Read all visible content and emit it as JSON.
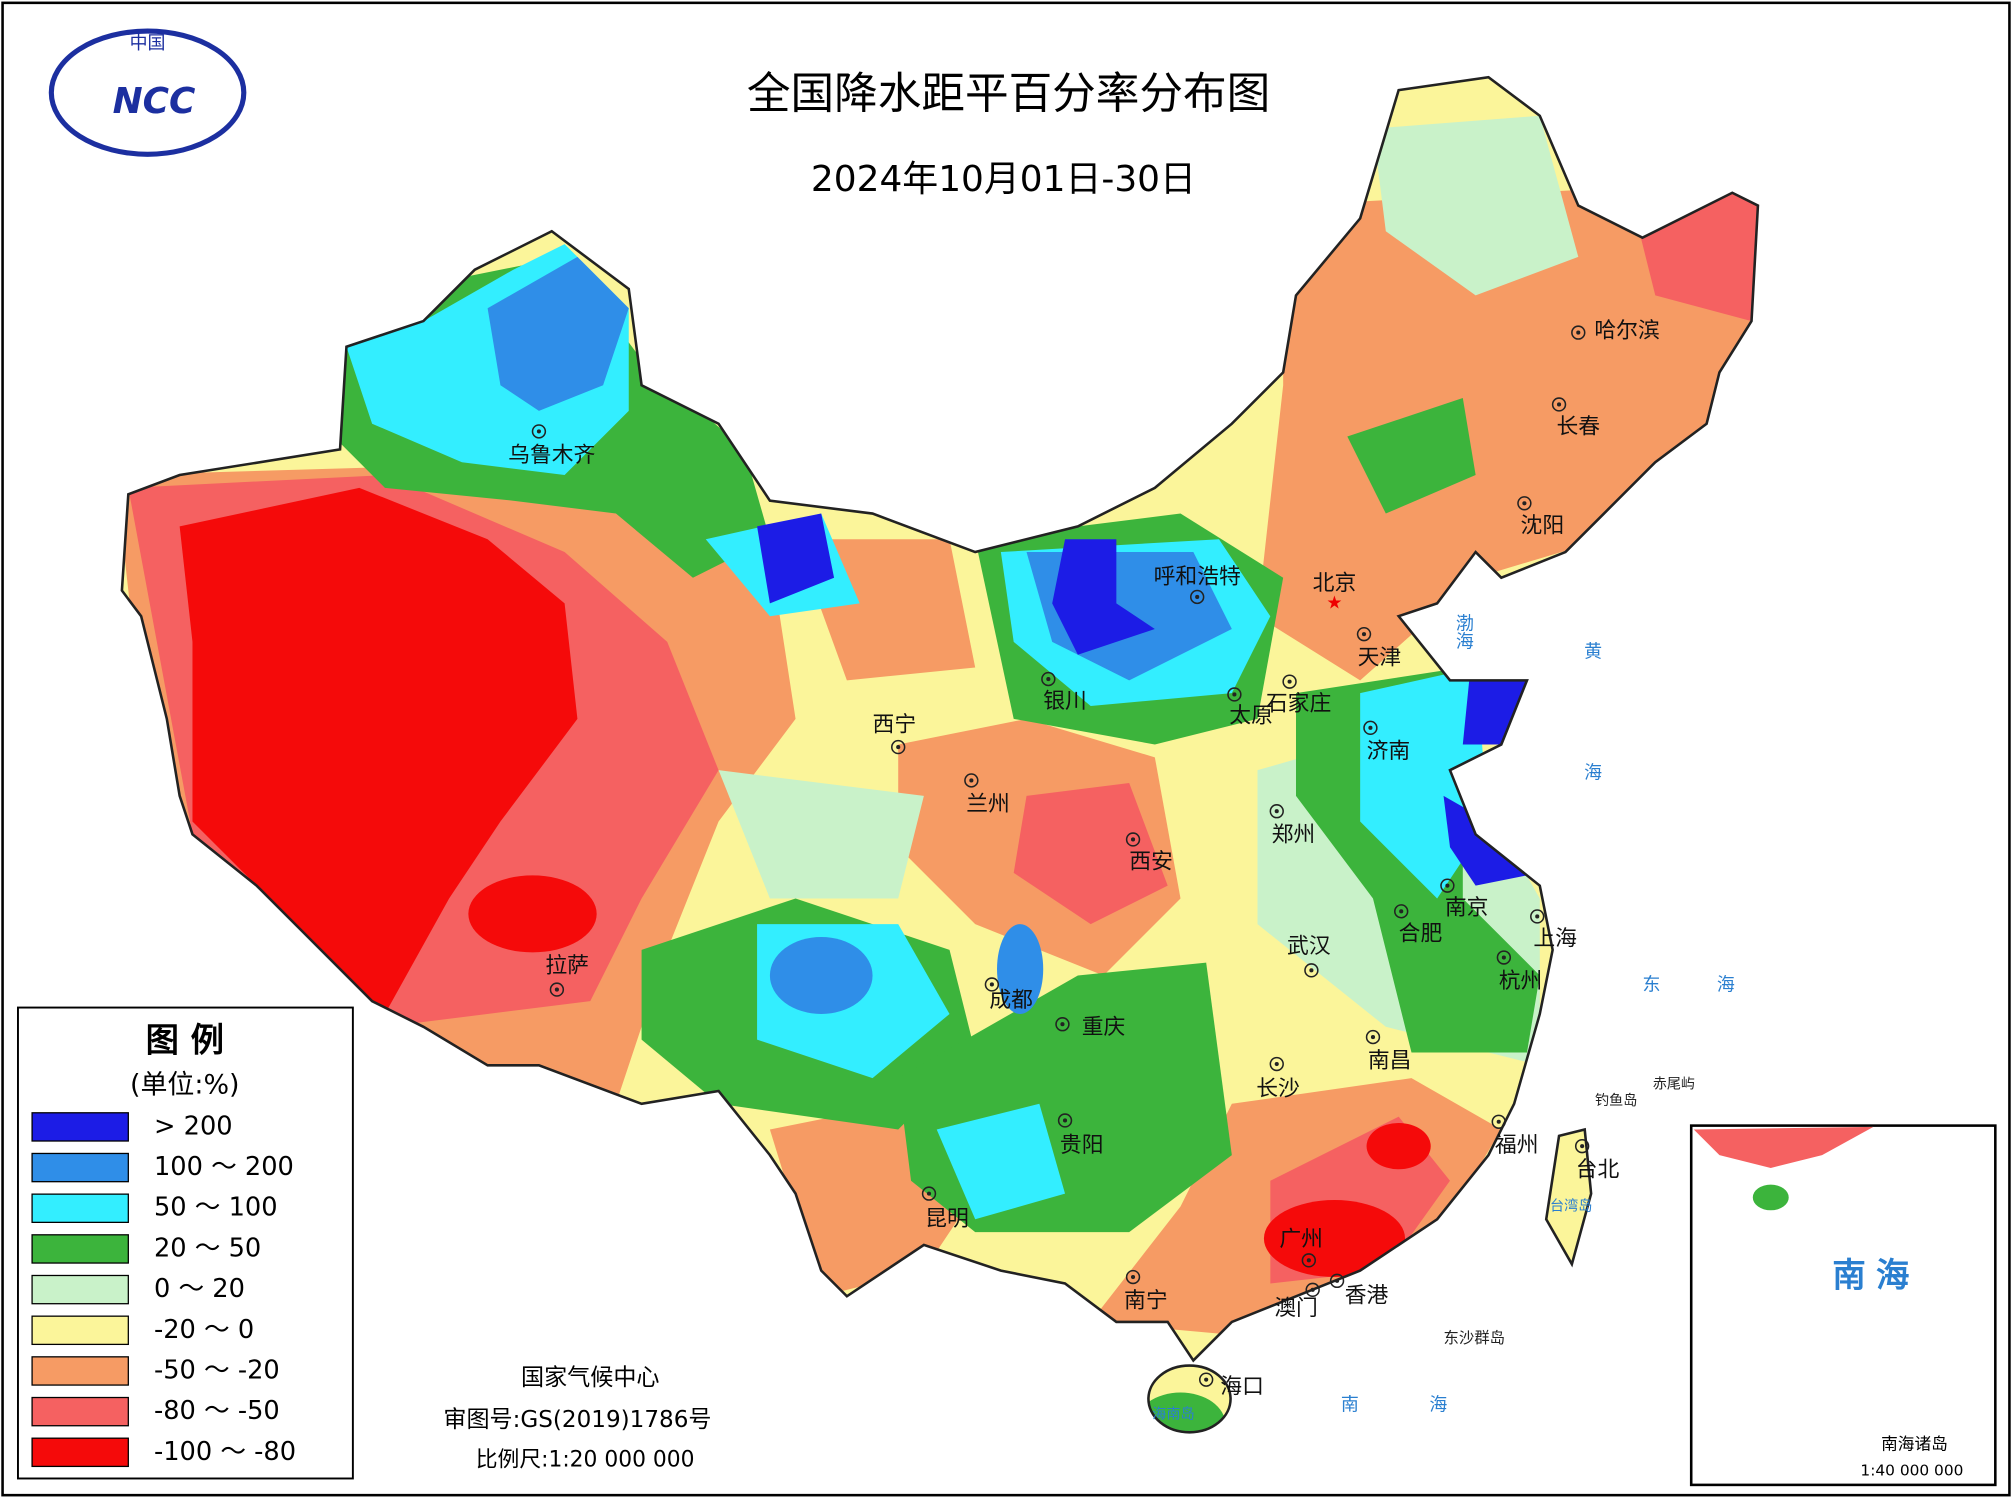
{
  "header": {
    "logo_top": "中国",
    "logo_text": "NCC",
    "title": "全国降水距平百分率分布图",
    "subtitle": "2024年10月01日-30日"
  },
  "legend": {
    "title": "图 例",
    "unit": "(单位:%)",
    "items": [
      {
        "label": "> 200",
        "color": "#1c1ce6"
      },
      {
        "label": "100 ～ 200",
        "color": "#2f8ee8"
      },
      {
        "label": "50 ～ 100",
        "color": "#33eeff"
      },
      {
        "label": "20 ～ 50",
        "color": "#3cb43c"
      },
      {
        "label": "0 ～ 20",
        "color": "#c9f2c9"
      },
      {
        "label": "-20 ～ 0",
        "color": "#fbf59a"
      },
      {
        "label": "-50 ～ -20",
        "color": "#f69b64"
      },
      {
        "label": "-80 ～ -50",
        "color": "#f56161"
      },
      {
        "label": "-100 ～ -80",
        "color": "#f50a0a"
      }
    ]
  },
  "cities": [
    "乌鲁木齐",
    "呼和浩特",
    "北京",
    "天津",
    "石家庄",
    "太原",
    "银川",
    "西宁",
    "兰州",
    "西安",
    "济南",
    "郑州",
    "南京",
    "合肥",
    "上海",
    "杭州",
    "武汉",
    "成都",
    "重庆",
    "拉萨",
    "南昌",
    "长沙",
    "贵阳",
    "福州",
    "台北",
    "昆明",
    "广州",
    "南宁",
    "香港",
    "澳门",
    "海口",
    "沈阳",
    "长春",
    "哈尔滨"
  ],
  "map_labels": [
    "渤海",
    "黄海",
    "东海",
    "南海",
    "钓鱼岛",
    "赤尾屿",
    "台湾岛",
    "海南岛",
    "东沙群岛"
  ],
  "inset": {
    "title": "南海",
    "caption": "南海诸岛",
    "scale": "1:40 000 000"
  },
  "footer": {
    "agency": "国家气候中心",
    "approval": "审图号:GS(2019)1786号",
    "scale": "比例尺:1:20 000 000"
  }
}
